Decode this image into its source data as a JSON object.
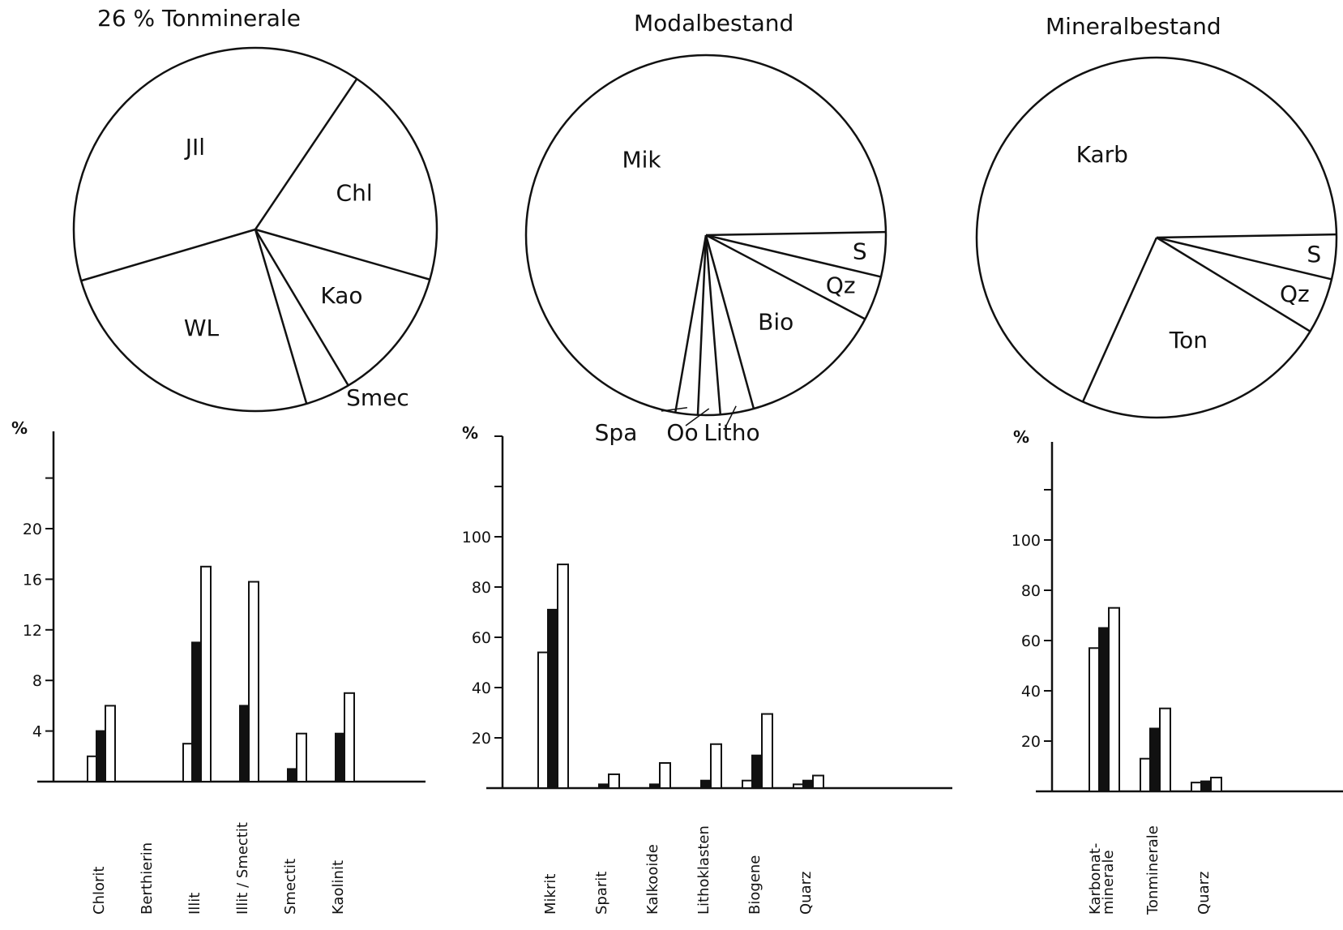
{
  "chart_data": [
    {
      "type": "pie",
      "title": "26 % Tonminerale",
      "slices": [
        {
          "label": "Chl",
          "value": 20
        },
        {
          "label": "Kao",
          "value": 12
        },
        {
          "label": "Smec",
          "value": 4
        },
        {
          "label": "WL",
          "value": 25
        },
        {
          "label": "JIl",
          "value": 39
        }
      ]
    },
    {
      "type": "pie",
      "title": "Modalbestand",
      "slices": [
        {
          "label": "S",
          "value": 4
        },
        {
          "label": "Qz",
          "value": 4
        },
        {
          "label": "Bio",
          "value": 13
        },
        {
          "label": "Litho",
          "value": 3
        },
        {
          "label": "Oo",
          "value": 2
        },
        {
          "label": "Spa",
          "value": 2
        },
        {
          "label": "Mik",
          "value": 72
        }
      ]
    },
    {
      "type": "pie",
      "title": "Mineralbestand",
      "slices": [
        {
          "label": "S",
          "value": 4
        },
        {
          "label": "Qz",
          "value": 5
        },
        {
          "label": "Ton",
          "value": 23
        },
        {
          "label": "Karb",
          "value": 68
        }
      ]
    },
    {
      "type": "bar",
      "ylabel": "%",
      "ylim": [
        0,
        28
      ],
      "yticks": [
        4,
        8,
        12,
        16,
        20
      ],
      "categories": [
        "Chlorit",
        "Berthierin",
        "Illit",
        "Illit / Smectit",
        "Smectit",
        "Kaolinit"
      ],
      "series": [
        {
          "fill": "white",
          "values": [
            2,
            0,
            3,
            0,
            0,
            0
          ]
        },
        {
          "fill": "black",
          "values": [
            4,
            0,
            11,
            6,
            1,
            3.8
          ]
        },
        {
          "fill": "white",
          "values": [
            6,
            0,
            17,
            15.8,
            3.8,
            7
          ]
        }
      ]
    },
    {
      "type": "bar",
      "ylabel": "%",
      "ylim": [
        0,
        140
      ],
      "yticks": [
        20,
        40,
        60,
        80,
        100
      ],
      "categories": [
        "Mikrit",
        "Sparit",
        "Kalkooide",
        "Lithoklasten",
        "Biogene",
        "Quarz"
      ],
      "series": [
        {
          "fill": "white",
          "values": [
            54,
            0,
            0,
            0,
            3,
            1.5
          ]
        },
        {
          "fill": "black",
          "values": [
            71,
            1.5,
            1.5,
            3,
            13,
            3
          ]
        },
        {
          "fill": "white",
          "values": [
            89,
            5.5,
            10,
            17.5,
            29.5,
            5
          ]
        }
      ]
    },
    {
      "type": "bar",
      "ylabel": "%",
      "ylim": [
        0,
        140
      ],
      "yticks": [
        20,
        40,
        60,
        80,
        100
      ],
      "categories": [
        "Karbonat-minerale",
        "Tonminerale",
        "Quarz"
      ],
      "series": [
        {
          "fill": "white",
          "values": [
            57,
            13,
            3.5
          ]
        },
        {
          "fill": "black",
          "values": [
            65,
            25,
            4
          ]
        },
        {
          "fill": "white",
          "values": [
            73,
            33,
            5.5
          ]
        }
      ]
    }
  ]
}
